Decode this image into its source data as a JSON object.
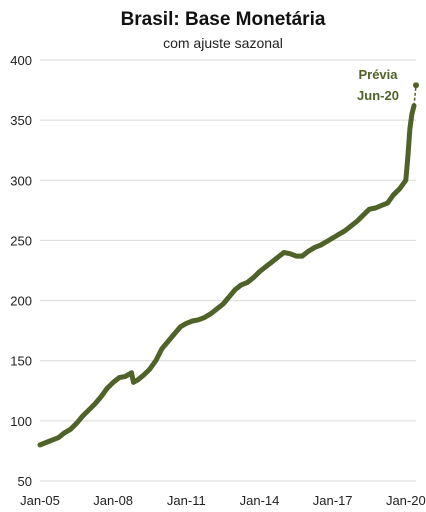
{
  "chart_data": {
    "type": "line",
    "title": "Brasil: Base Monetária",
    "subtitle": "com ajuste sazonal",
    "xlabel": "",
    "ylabel": "",
    "x_ticks": [
      "Jan-05",
      "Jan-08",
      "Jan-11",
      "Jan-14",
      "Jan-17",
      "Jan-20"
    ],
    "ylim": [
      50,
      400
    ],
    "y_ticks": [
      50,
      100,
      150,
      200,
      250,
      300,
      350,
      400
    ],
    "grid": "horizontal",
    "colors": {
      "line": "#4f6228",
      "annotation": "#4f6228"
    },
    "series": [
      {
        "x": [
          "2005-01",
          "2005-04",
          "2005-07",
          "2005-10",
          "2006-01",
          "2006-04",
          "2006-07",
          "2006-10",
          "2007-01",
          "2007-04",
          "2007-07",
          "2007-10",
          "2008-01",
          "2008-04",
          "2008-07",
          "2008-10",
          "2008-11",
          "2009-01",
          "2009-04",
          "2009-07",
          "2009-10",
          "2010-01",
          "2010-04",
          "2010-07",
          "2010-10",
          "2011-01",
          "2011-04",
          "2011-07",
          "2011-10",
          "2012-01",
          "2012-04",
          "2012-07",
          "2012-10",
          "2013-01",
          "2013-04",
          "2013-07",
          "2013-10",
          "2014-01",
          "2014-04",
          "2014-07",
          "2014-10",
          "2015-01",
          "2015-04",
          "2015-07",
          "2015-10",
          "2016-01",
          "2016-04",
          "2016-07",
          "2016-10",
          "2017-01",
          "2017-04",
          "2017-07",
          "2017-10",
          "2018-01",
          "2018-04",
          "2018-07",
          "2018-10",
          "2019-01",
          "2019-04",
          "2019-07",
          "2019-10",
          "2020-01",
          "2020-02",
          "2020-03",
          "2020-04",
          "2020-05"
        ],
        "values": [
          80,
          82,
          84,
          86,
          90,
          93,
          98,
          104,
          109,
          114,
          120,
          127,
          132,
          136,
          137,
          140,
          132,
          134,
          138,
          143,
          150,
          160,
          166,
          172,
          178,
          181,
          183,
          184,
          186,
          189,
          193,
          197,
          203,
          209,
          213,
          215,
          219,
          224,
          228,
          232,
          236,
          240,
          239,
          237,
          237,
          241,
          244,
          246,
          249,
          252,
          255,
          258,
          262,
          266,
          271,
          276,
          277,
          279,
          281,
          288,
          293,
          300,
          320,
          343,
          355,
          362
        ]
      }
    ],
    "preview": {
      "label_line1": "Prévia",
      "label_line2": "Jun-20",
      "x": "2020-06",
      "value": 379
    }
  }
}
